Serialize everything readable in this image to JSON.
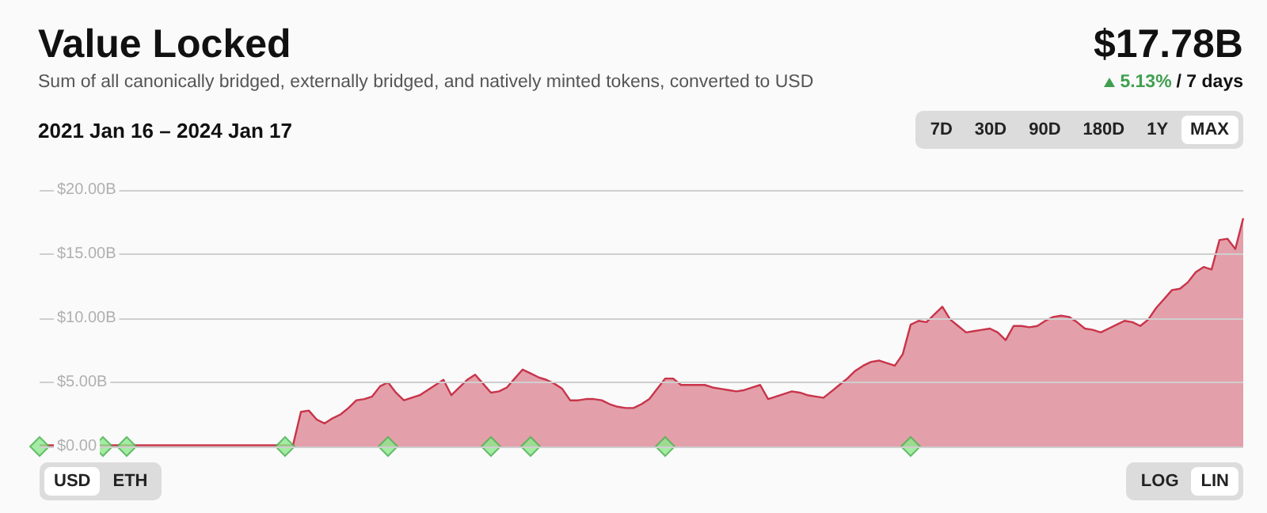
{
  "chart_data": {
    "type": "area",
    "title": "Value Locked",
    "subtitle": "Sum of all canonically bridged, externally bridged, and natively minted tokens, converted to USD",
    "annotations": [
      "$17.78B",
      "5.13%",
      "/ 7 days",
      "2021 Jan 16 – 2024 Jan 17",
      "7D",
      "30D",
      "90D",
      "180D",
      "1Y",
      "MAX",
      "USD",
      "ETH",
      "LOG",
      "LIN"
    ],
    "categories": [
      null,
      null,
      null,
      null,
      null,
      null,
      null,
      null,
      null,
      null,
      null,
      null,
      null,
      null,
      null,
      null,
      null,
      null,
      null,
      null,
      null,
      null,
      null,
      null,
      null,
      null,
      null,
      null,
      null,
      null,
      null,
      null,
      null,
      null,
      null,
      null,
      null,
      null,
      null,
      null,
      null,
      null,
      null,
      null,
      null,
      null,
      null,
      null,
      null,
      null,
      null,
      null,
      null,
      null,
      null,
      null,
      null,
      null,
      null,
      null,
      null,
      null,
      null,
      null,
      null,
      null,
      null,
      null,
      null,
      null,
      null,
      null,
      null,
      null,
      null,
      null,
      null,
      null,
      null,
      null,
      null,
      null,
      null,
      null,
      null,
      null,
      null,
      null,
      null,
      null,
      null,
      null,
      null,
      null,
      null,
      null,
      null,
      null,
      null,
      null,
      null,
      null,
      null,
      null,
      null,
      null,
      null,
      null,
      null,
      null,
      null,
      null,
      null,
      null,
      null,
      null,
      null,
      null,
      null,
      null,
      null,
      null,
      null,
      null,
      null,
      null,
      null,
      null,
      null,
      null,
      null,
      null,
      null,
      null,
      null,
      null,
      null,
      null,
      null,
      null,
      null,
      null,
      null,
      null,
      null,
      null,
      null,
      null,
      null,
      null,
      null,
      null,
      null
    ],
    "series": [
      {
        "color": "#c8344a",
        "marker": "none",
        "values": [
          0.1,
          0.1,
          0.1,
          0.1,
          0.1,
          0.1,
          0.1,
          0.1,
          0.1,
          0.1,
          0.1,
          0.1,
          0.1,
          0.1,
          0.1,
          0.1,
          0.1,
          0.1,
          0.1,
          0.1,
          0.1,
          0.1,
          0.1,
          0.1,
          0.1,
          0.1,
          0.1,
          0.1,
          0.1,
          0.1,
          0.1,
          0.1,
          0.1,
          2.7,
          2.8,
          2.1,
          1.8,
          2.2,
          2.5,
          3.0,
          3.6,
          3.7,
          3.9,
          4.7,
          5.0,
          4.2,
          3.6,
          3.8,
          4.0,
          4.4,
          4.8,
          5.2,
          4.0,
          4.6,
          5.2,
          5.6,
          4.9,
          4.2,
          4.3,
          4.6,
          5.3,
          6.0,
          5.7,
          5.4,
          5.2,
          4.9,
          4.5,
          3.6,
          3.6,
          3.7,
          3.7,
          3.6,
          3.3,
          3.1,
          3.0,
          3.0,
          3.3,
          3.7,
          4.5,
          5.3,
          5.3,
          4.8,
          4.8,
          4.8,
          4.8,
          4.6,
          4.5,
          4.4,
          4.3,
          4.4,
          4.6,
          4.8,
          3.7,
          3.9,
          4.1,
          4.3,
          4.2,
          4.0,
          3.9,
          3.8,
          4.3,
          4.8,
          5.3,
          5.9,
          6.3,
          6.6,
          6.7,
          6.5,
          6.3,
          7.2,
          9.5,
          9.8,
          9.7,
          10.3,
          10.9,
          9.9,
          9.4,
          8.9,
          9.0,
          9.1,
          9.2,
          8.9,
          8.3,
          9.4,
          9.4,
          9.3,
          9.4,
          9.8,
          10.1,
          10.2,
          10.1,
          9.7,
          9.2,
          9.1,
          8.9,
          9.2,
          9.5,
          9.8,
          9.7,
          9.4,
          9.9,
          10.8,
          11.5,
          12.2,
          12.3,
          12.8,
          13.6,
          14.0,
          13.8,
          16.1,
          16.2,
          15.4,
          17.8
        ]
      },
      {
        "type": "scatter",
        "color": "#8de88d",
        "marker": "diamond",
        "values": [
          0,
          null,
          null,
          null,
          null,
          null,
          null,
          null,
          0,
          null,
          null,
          0,
          null,
          null,
          null,
          null,
          null,
          null,
          null,
          null,
          null,
          null,
          null,
          null,
          null,
          null,
          null,
          null,
          null,
          null,
          null,
          0,
          null,
          null,
          null,
          null,
          null,
          null,
          null,
          null,
          null,
          null,
          null,
          null,
          0,
          null,
          null,
          null,
          null,
          null,
          null,
          null,
          null,
          null,
          null,
          null,
          null,
          0,
          null,
          null,
          null,
          null,
          0,
          null,
          null,
          null,
          null,
          null,
          null,
          null,
          null,
          null,
          null,
          null,
          null,
          null,
          null,
          null,
          null,
          0,
          null,
          null,
          null,
          null,
          null,
          null,
          null,
          null,
          null,
          null,
          null,
          null,
          null,
          null,
          null,
          null,
          null,
          null,
          null,
          null,
          null,
          null,
          null,
          null,
          null,
          null,
          null,
          null,
          null,
          null,
          0,
          null,
          null,
          null,
          null,
          null,
          null,
          null,
          null,
          null,
          null,
          null,
          null,
          null,
          null,
          null,
          null,
          null,
          null,
          null,
          null,
          null,
          null,
          null,
          null,
          null,
          null,
          null,
          null,
          null,
          null,
          null,
          null,
          null,
          null,
          null,
          null,
          null,
          null,
          null,
          null,
          null,
          null
        ]
      }
    ],
    "ylim": [
      0,
      20
    ],
    "yticks": [
      {
        "value": 0,
        "label": "$0.00"
      },
      {
        "value": 5,
        "label": "$5.00B"
      },
      {
        "value": 10,
        "label": "$10.00B"
      },
      {
        "value": 15,
        "label": "$15.00B"
      },
      {
        "value": 20,
        "label": "$20.00B"
      }
    ],
    "grid": "y"
  }
}
